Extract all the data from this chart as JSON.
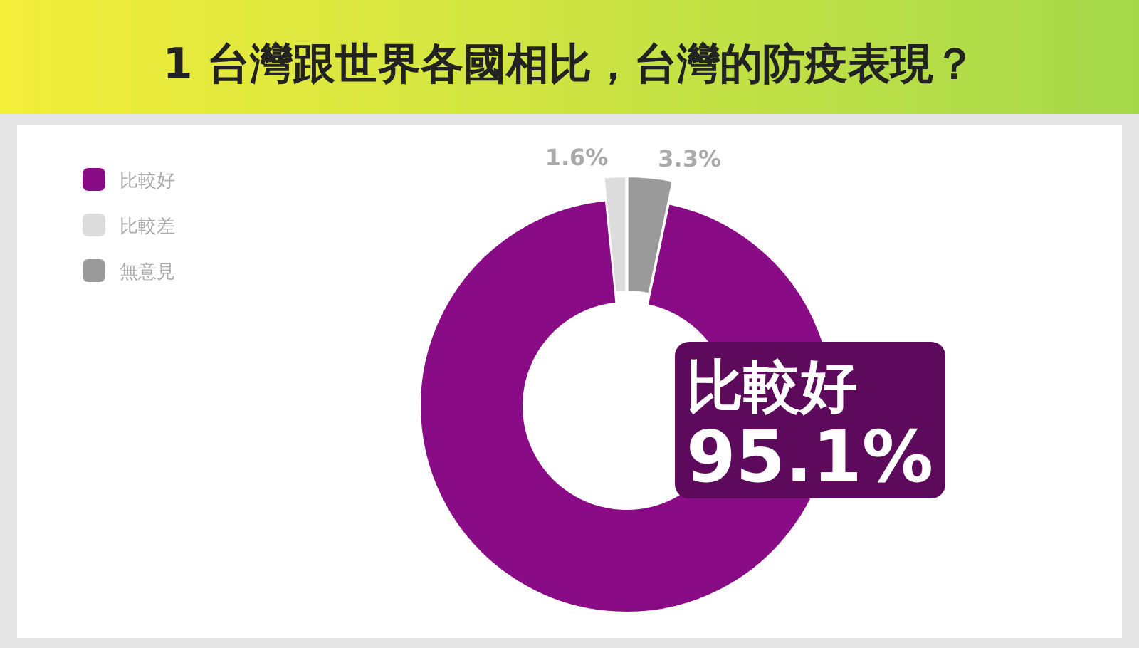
{
  "chart_data": {
    "type": "donut",
    "title": "1 台灣跟世界各國相比，台灣的防疫表現？",
    "categories": [
      "比較好",
      "比較差",
      "無意見"
    ],
    "values": [
      95.1,
      1.6,
      3.3
    ],
    "colors": [
      "#8a0b86",
      "#dcdcdc",
      "#9a9a9a"
    ],
    "value_labels": [
      "95.1%",
      "1.6%",
      "3.3%"
    ],
    "legend": "top left"
  }
}
